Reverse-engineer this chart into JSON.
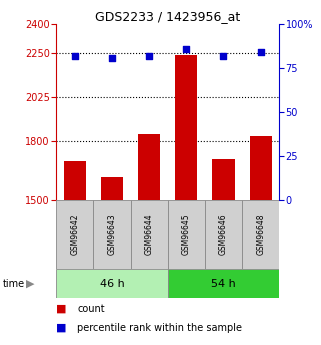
{
  "title": "GDS2233 / 1423956_at",
  "samples": [
    "GSM96642",
    "GSM96643",
    "GSM96644",
    "GSM96645",
    "GSM96646",
    "GSM96648"
  ],
  "counts": [
    1700,
    1620,
    1840,
    2240,
    1710,
    1830
  ],
  "percentiles": [
    82,
    81,
    82,
    86,
    82,
    84
  ],
  "groups": [
    {
      "label": "46 h",
      "indices": [
        0,
        1,
        2
      ],
      "color": "#b3f0b3"
    },
    {
      "label": "54 h",
      "indices": [
        3,
        4,
        5
      ],
      "color": "#33cc33"
    }
  ],
  "ylim_left": [
    1500,
    2400
  ],
  "ylim_right": [
    0,
    100
  ],
  "yticks_left": [
    1500,
    1800,
    2025,
    2250,
    2400
  ],
  "yticks_right": [
    0,
    25,
    50,
    75,
    100
  ],
  "bar_color": "#cc0000",
  "dot_color": "#0000cc",
  "grid_lines": [
    1800,
    2025,
    2250
  ],
  "label_fontsize": 5.5,
  "group_fontsize": 8,
  "title_fontsize": 9,
  "tick_fontsize": 7,
  "legend_fontsize": 7,
  "bar_width": 0.6
}
